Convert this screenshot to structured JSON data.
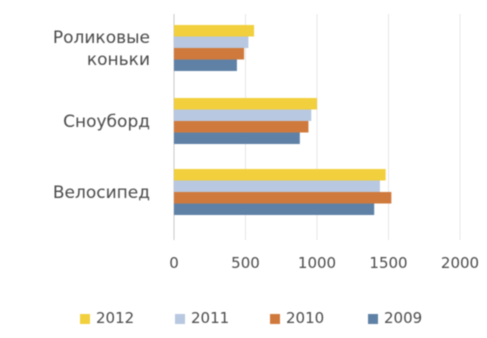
{
  "chart_data": {
    "type": "bar",
    "orientation": "horizontal",
    "title": "",
    "xlabel": "",
    "ylabel": "",
    "categories": [
      [
        "Роликовые",
        "коньки"
      ],
      [
        "Сноуборд"
      ],
      [
        "Велосипед"
      ]
    ],
    "series": [
      {
        "name": "2012",
        "color": "#f2cf3c",
        "values": [
          560,
          1000,
          1480
        ]
      },
      {
        "name": "2011",
        "color": "#b7c8e0",
        "values": [
          520,
          960,
          1440
        ]
      },
      {
        "name": "2010",
        "color": "#cf7a3c",
        "values": [
          490,
          940,
          1520
        ]
      },
      {
        "name": "2009",
        "color": "#5f81a6",
        "values": [
          440,
          880,
          1400
        ]
      }
    ],
    "xlim": [
      0,
      2000
    ],
    "xticks": [
      "0",
      "500",
      "1000",
      "1500",
      "2000"
    ],
    "xtick_values": [
      0,
      500,
      1000,
      1500,
      2000
    ],
    "grid": true,
    "legend_position": "bottom"
  }
}
